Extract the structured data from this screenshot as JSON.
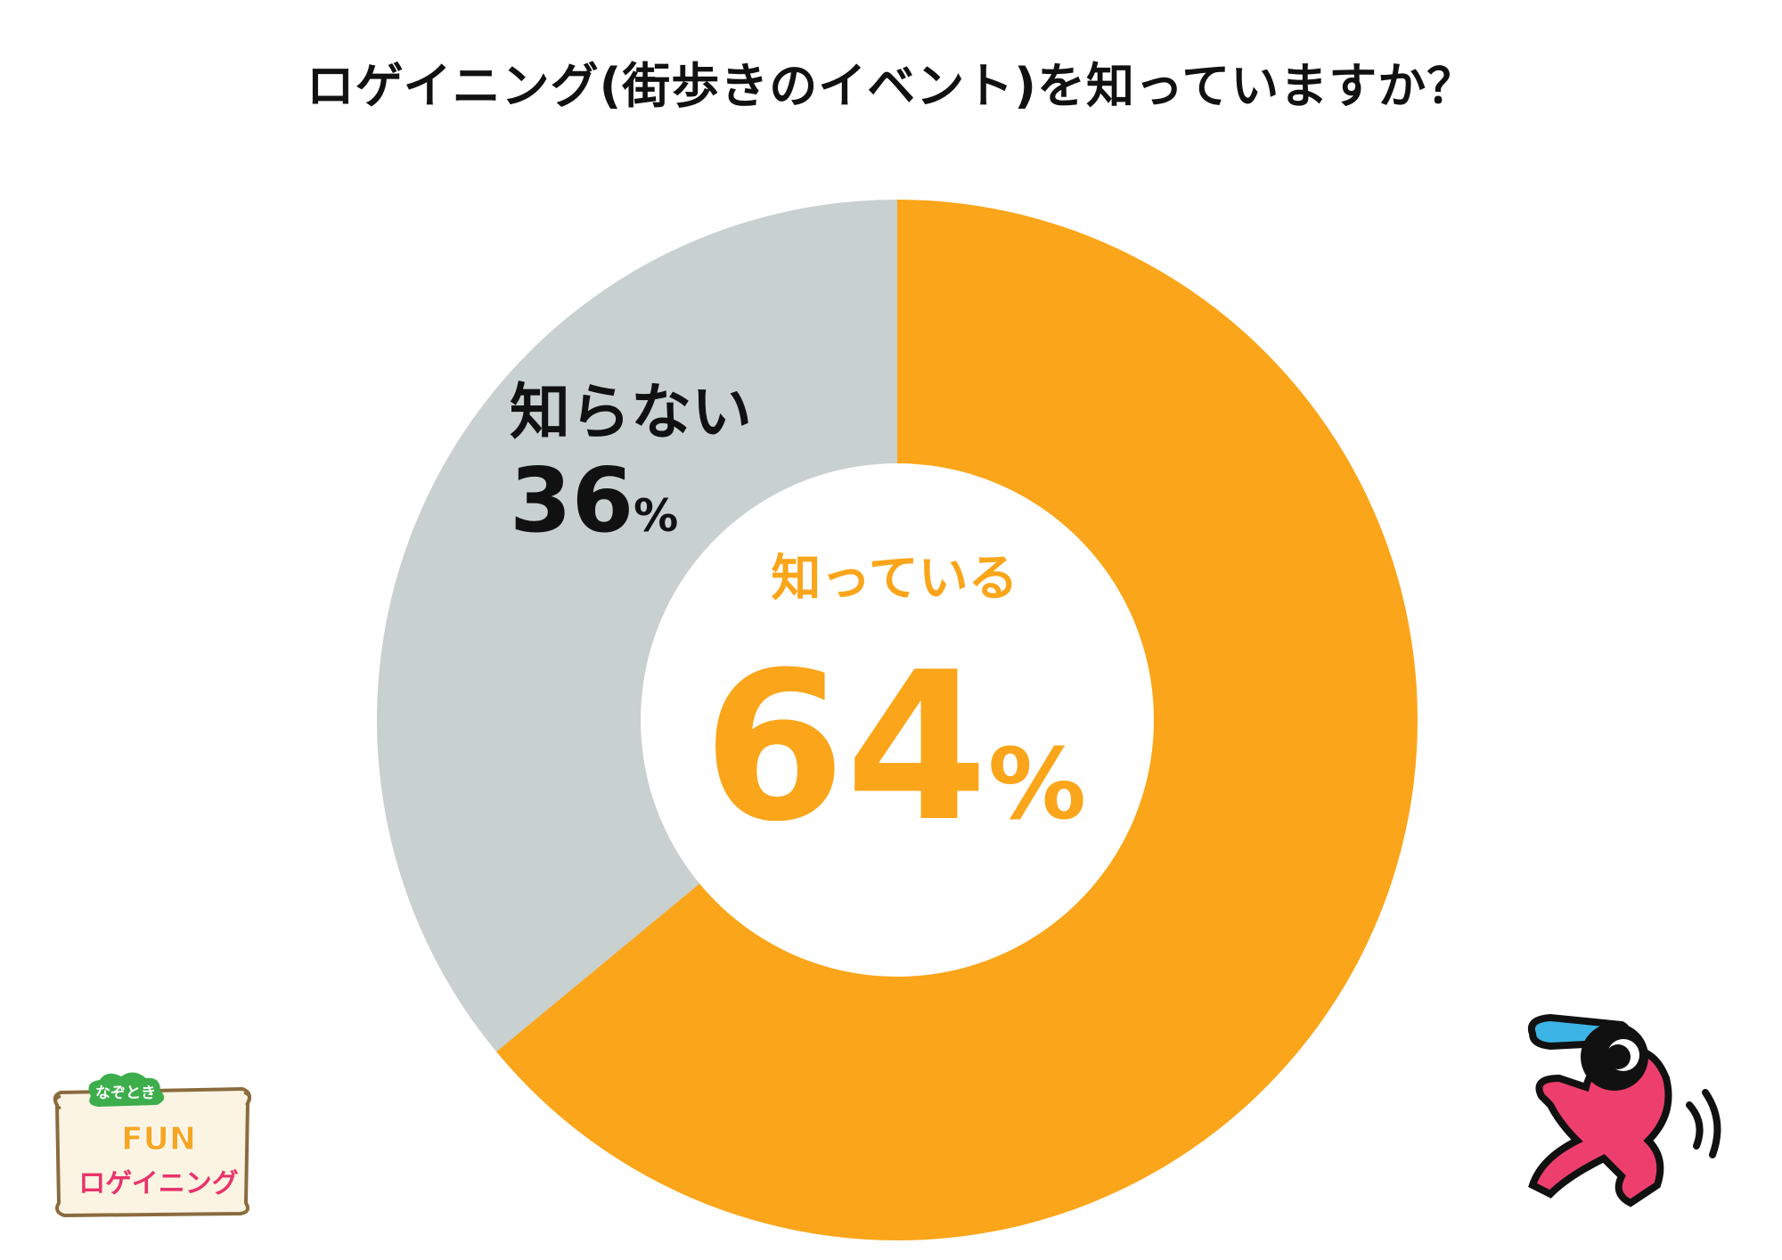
{
  "title": "ロゲイニング(街歩きのイベント)を知っていますか？",
  "chart_data": {
    "type": "pie",
    "title": "ロゲイニング(街歩きのイベント)を知っていますか？",
    "slices": [
      {
        "label": "知っている",
        "value": 64,
        "value_text": "64",
        "unit": "%",
        "color": "#FBA51A"
      },
      {
        "label": "知らない",
        "value": 36,
        "value_text": "36",
        "unit": "%",
        "color": "#C8D0D0"
      }
    ]
  },
  "logo": {
    "line1": "なぞとき",
    "line2": "FUN",
    "line3": "ロゲイニング"
  }
}
